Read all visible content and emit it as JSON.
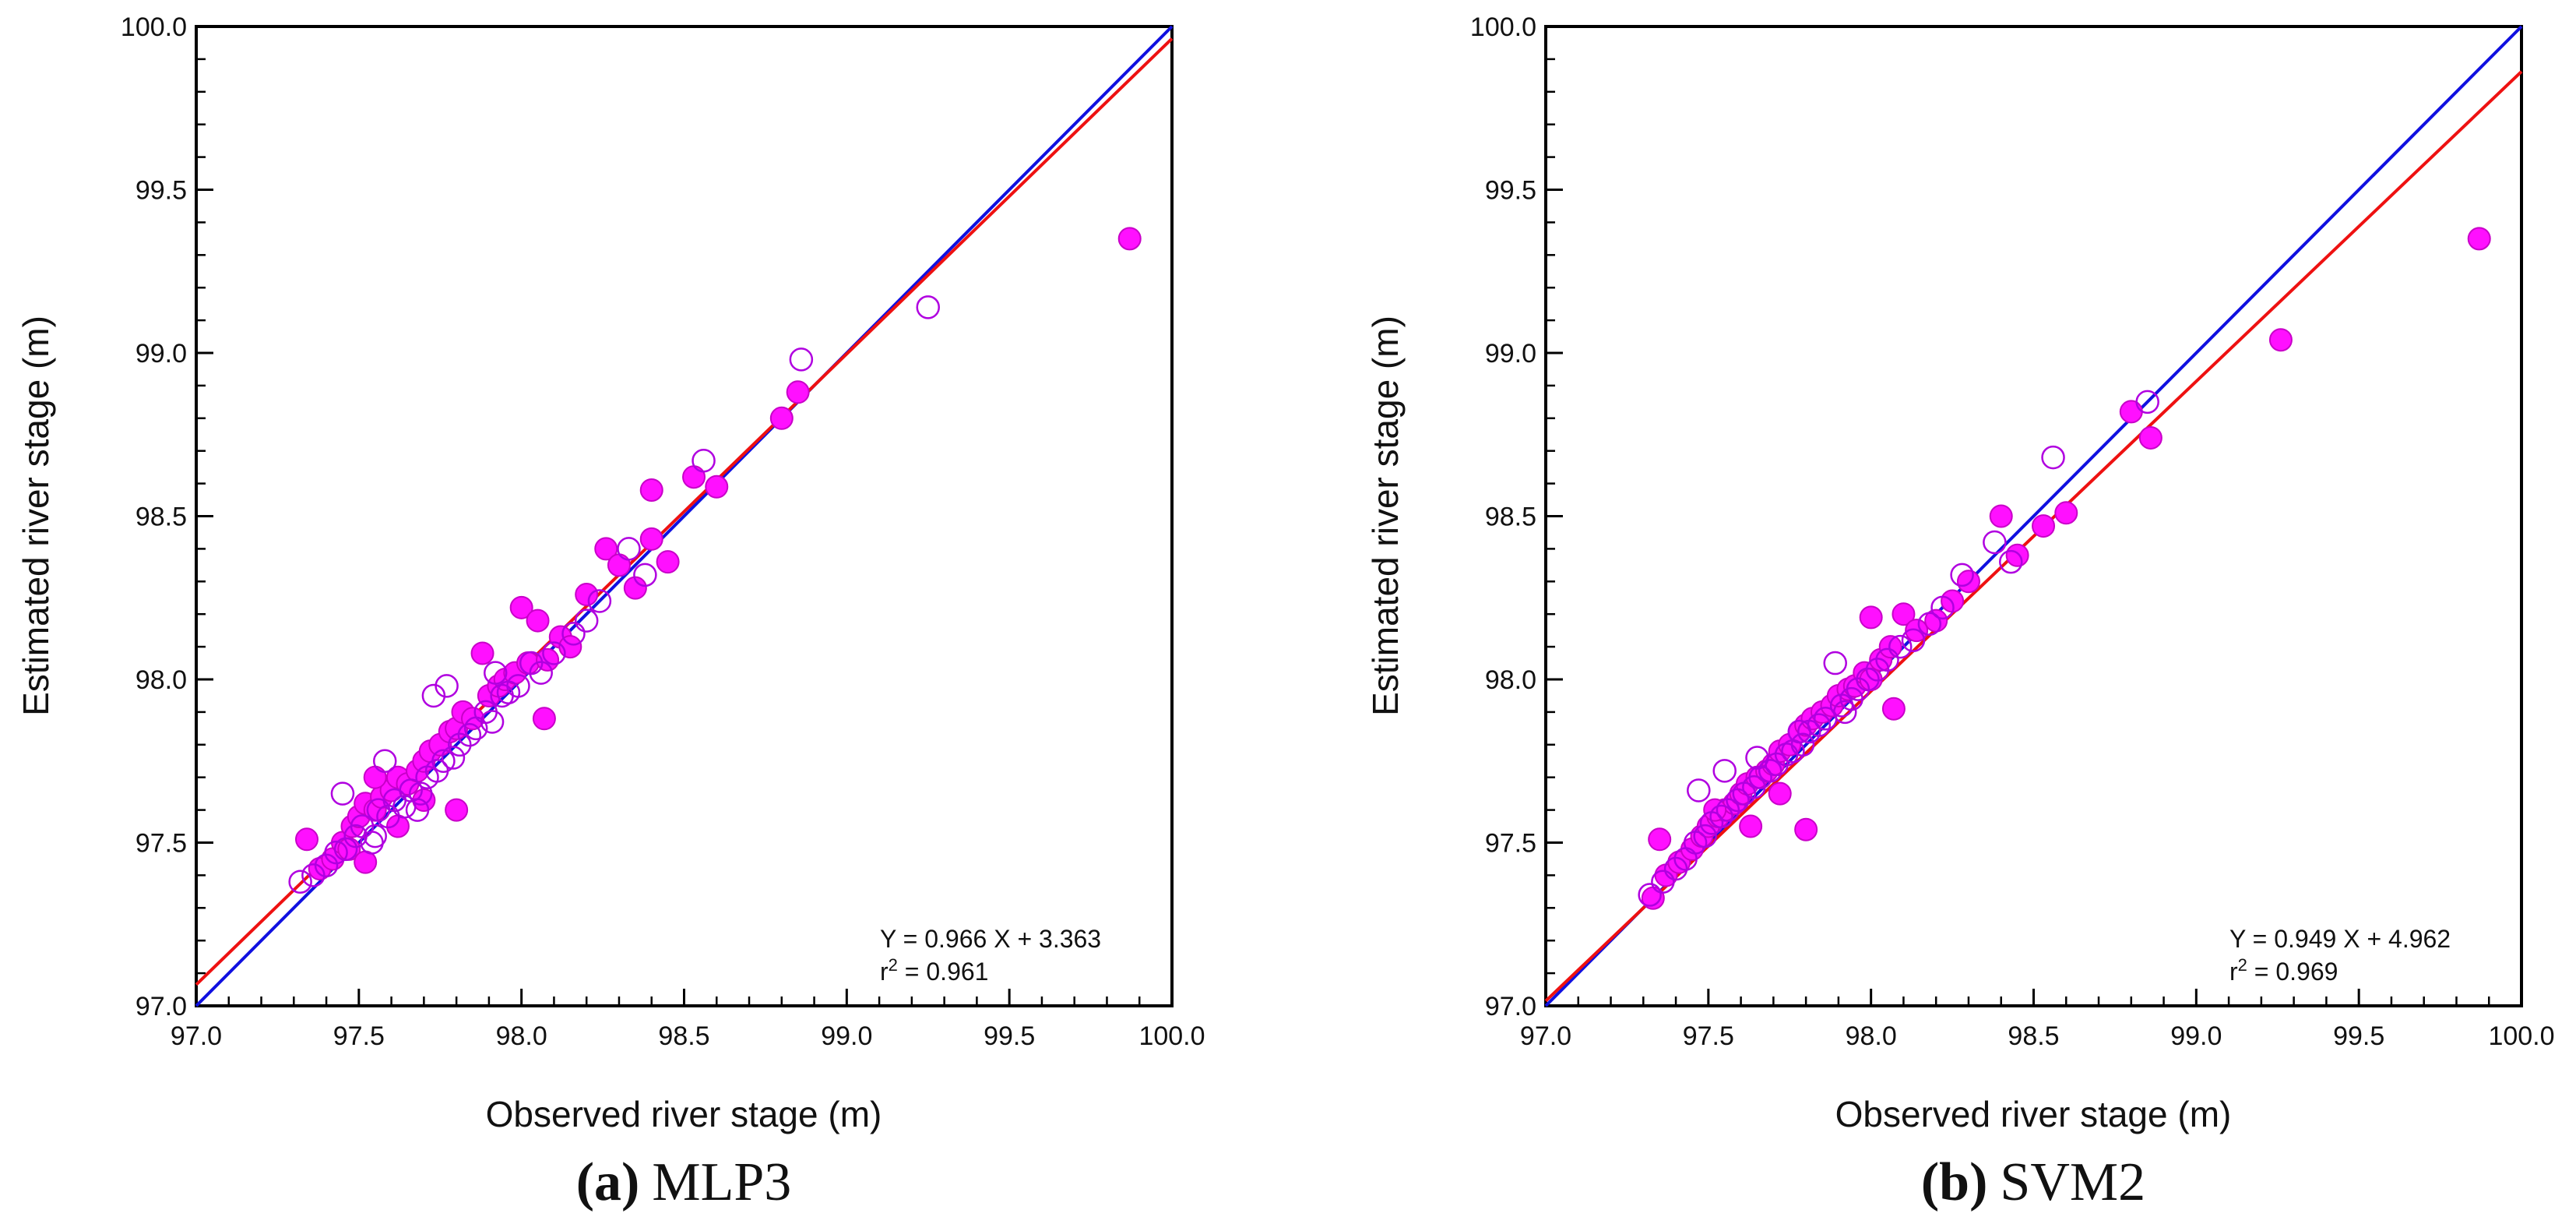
{
  "chart_data": [
    {
      "type": "scatter",
      "caption_letter": "(a)",
      "caption_label": "MLP3",
      "xlabel": "Observed river stage (m)",
      "ylabel": "Estimated river stage (m)",
      "xlim": [
        97.0,
        100.0
      ],
      "ylim": [
        97.0,
        100.0
      ],
      "x_ticks": [
        "97.0",
        "97.5",
        "98.0",
        "98.5",
        "99.0",
        "99.5",
        "100.0"
      ],
      "y_ticks": [
        "97.0",
        "97.5",
        "98.0",
        "98.5",
        "99.0",
        "99.5",
        "100.0"
      ],
      "grid": false,
      "equation": "Y = 0.966 X + 3.363",
      "r2_prefix": "r",
      "r2_value": " = 0.961",
      "lines": [
        {
          "kind": "1:1 line",
          "color": "#1010e0",
          "slope": 1.0,
          "intercept": 0.0
        },
        {
          "kind": "regression",
          "color": "#ee1111",
          "slope": 0.966,
          "intercept": 3.363
        }
      ],
      "series": [
        {
          "marker": "filled circle",
          "color": "#ff10ff",
          "x": [
            97.34,
            97.38,
            97.42,
            97.45,
            97.48,
            97.5,
            97.52,
            97.55,
            97.57,
            97.6,
            97.62,
            97.65,
            97.68,
            97.7,
            97.72,
            97.75,
            97.78,
            97.8,
            97.82,
            97.85,
            97.88,
            97.9,
            97.93,
            97.95,
            97.98,
            98.0,
            98.02,
            98.05,
            98.08,
            98.12,
            98.15,
            98.2,
            98.26,
            98.3,
            98.35,
            98.4,
            98.45,
            98.53,
            98.6,
            98.8,
            98.85,
            99.87,
            97.8,
            98.07,
            98.4,
            97.55,
            97.62,
            97.7,
            97.47,
            97.52
          ],
          "y": [
            97.51,
            97.42,
            97.45,
            97.5,
            97.55,
            97.58,
            97.62,
            97.6,
            97.64,
            97.66,
            97.7,
            97.68,
            97.72,
            97.75,
            97.78,
            97.8,
            97.84,
            97.85,
            97.9,
            97.88,
            98.08,
            97.95,
            97.98,
            98.0,
            98.02,
            98.22,
            98.05,
            98.18,
            98.06,
            98.13,
            98.1,
            98.26,
            98.4,
            98.35,
            98.28,
            98.58,
            98.36,
            98.62,
            98.59,
            98.8,
            98.88,
            99.35,
            97.6,
            97.88,
            98.43,
            97.7,
            97.55,
            97.63,
            97.48,
            97.44
          ]
        },
        {
          "marker": "open circle",
          "color": "#b000e0",
          "x": [
            97.32,
            97.36,
            97.4,
            97.43,
            97.46,
            97.49,
            97.51,
            97.54,
            97.56,
            97.59,
            97.61,
            97.64,
            97.66,
            97.69,
            97.71,
            97.74,
            97.76,
            97.79,
            97.81,
            97.84,
            97.86,
            97.89,
            97.91,
            97.94,
            97.96,
            97.99,
            98.03,
            98.06,
            98.1,
            98.16,
            98.2,
            98.24,
            98.33,
            98.38,
            98.56,
            98.86,
            99.25,
            97.45,
            97.58,
            97.73,
            97.77,
            97.92,
            97.55,
            97.68
          ],
          "y": [
            97.38,
            97.4,
            97.43,
            97.47,
            97.48,
            97.52,
            97.55,
            97.5,
            97.6,
            97.58,
            97.63,
            97.61,
            97.66,
            97.65,
            97.7,
            97.72,
            97.75,
            97.76,
            97.8,
            97.83,
            97.85,
            97.9,
            97.87,
            97.95,
            97.96,
            97.98,
            98.05,
            98.02,
            98.08,
            98.14,
            98.18,
            98.24,
            98.4,
            98.32,
            98.67,
            98.98,
            99.14,
            97.65,
            97.75,
            97.95,
            97.98,
            98.02,
            97.52,
            97.6
          ]
        }
      ]
    },
    {
      "type": "scatter",
      "caption_letter": "(b)",
      "caption_label": "SVM2",
      "xlabel": "Observed river stage (m)",
      "ylabel": "Estimated river stage (m)",
      "xlim": [
        97.0,
        100.0
      ],
      "ylim": [
        97.0,
        100.0
      ],
      "x_ticks": [
        "97.0",
        "97.5",
        "98.0",
        "98.5",
        "99.0",
        "99.5",
        "100.0"
      ],
      "y_ticks": [
        "97.0",
        "97.5",
        "98.0",
        "98.5",
        "99.0",
        "99.5",
        "100.0"
      ],
      "grid": false,
      "equation": "Y = 0.949 X + 4.962",
      "r2_prefix": "r",
      "r2_value": " = 0.969",
      "lines": [
        {
          "kind": "1:1 line",
          "color": "#1010e0",
          "slope": 1.0,
          "intercept": 0.0
        },
        {
          "kind": "regression",
          "color": "#ee1111",
          "slope": 0.949,
          "intercept": 4.962
        }
      ],
      "series": [
        {
          "marker": "filled circle",
          "color": "#ff10ff",
          "x": [
            97.33,
            97.37,
            97.41,
            97.45,
            97.48,
            97.5,
            97.53,
            97.55,
            97.58,
            97.6,
            97.62,
            97.65,
            97.68,
            97.7,
            97.72,
            97.75,
            97.78,
            97.8,
            97.82,
            97.85,
            97.88,
            97.9,
            97.93,
            97.95,
            97.98,
            98.0,
            98.03,
            98.06,
            98.1,
            98.14,
            98.2,
            98.25,
            98.3,
            98.4,
            98.45,
            98.53,
            98.6,
            98.8,
            98.86,
            99.26,
            99.87,
            97.8,
            98.07,
            98.0,
            97.35,
            97.52,
            97.63,
            97.72
          ],
          "y": [
            97.33,
            97.4,
            97.44,
            97.48,
            97.52,
            97.55,
            97.58,
            97.6,
            97.62,
            97.65,
            97.68,
            97.7,
            97.72,
            97.74,
            97.78,
            97.8,
            97.84,
            97.86,
            97.88,
            97.9,
            97.92,
            97.95,
            97.97,
            97.98,
            98.02,
            98.19,
            98.06,
            98.1,
            98.2,
            98.15,
            98.18,
            98.24,
            98.3,
            98.5,
            98.38,
            98.47,
            98.51,
            98.82,
            98.74,
            99.04,
            99.35,
            97.54,
            97.91,
            98.0,
            97.51,
            97.6,
            97.55,
            97.65
          ]
        },
        {
          "marker": "open circle",
          "color": "#b000e0",
          "x": [
            97.32,
            97.36,
            97.4,
            97.43,
            97.46,
            97.49,
            97.51,
            97.54,
            97.56,
            97.59,
            97.61,
            97.64,
            97.66,
            97.69,
            97.71,
            97.74,
            97.76,
            97.79,
            97.81,
            97.84,
            97.86,
            97.89,
            97.91,
            97.94,
            97.96,
            97.99,
            98.02,
            98.05,
            98.09,
            98.13,
            98.18,
            98.22,
            98.28,
            98.38,
            98.43,
            98.56,
            98.85,
            97.55,
            97.47,
            97.65,
            97.78,
            97.92
          ],
          "y": [
            97.34,
            97.38,
            97.42,
            97.45,
            97.5,
            97.52,
            97.56,
            97.58,
            97.6,
            97.63,
            97.65,
            97.67,
            97.7,
            97.72,
            97.74,
            97.77,
            97.78,
            97.8,
            97.84,
            97.86,
            97.88,
            98.05,
            97.92,
            97.94,
            97.97,
            98.0,
            98.03,
            98.06,
            98.1,
            98.12,
            98.17,
            98.22,
            98.32,
            98.42,
            98.36,
            98.68,
            98.85,
            97.72,
            97.66,
            97.76,
            97.84,
            97.9
          ]
        }
      ]
    }
  ]
}
